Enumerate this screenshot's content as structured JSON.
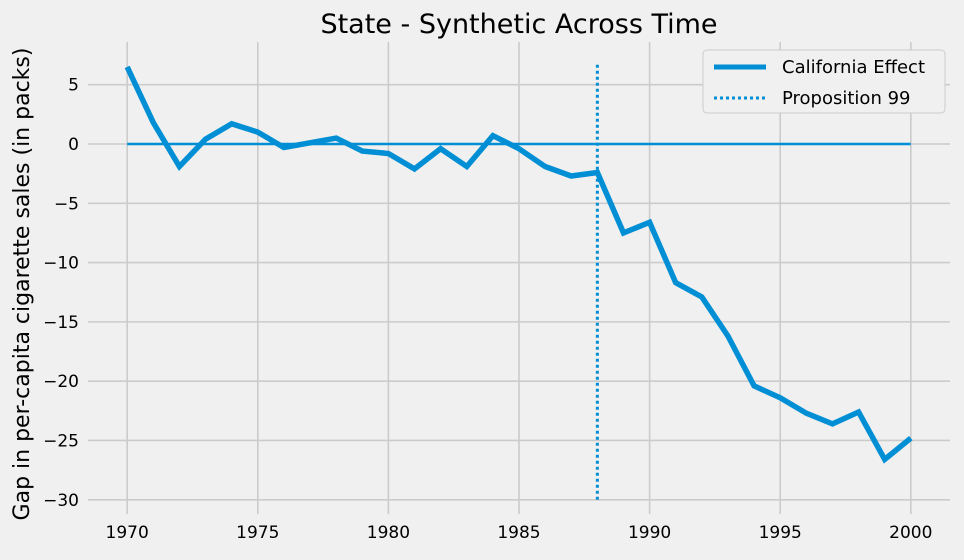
{
  "chart_data": {
    "type": "line",
    "title": "State - Synthetic Across Time",
    "xlabel": "",
    "ylabel": "Gap in per-capita cigarette sales (in packs)",
    "xlim": [
      1968.5,
      2001.5
    ],
    "ylim": [
      -31.2,
      8.6
    ],
    "xticks": [
      1970,
      1975,
      1980,
      1985,
      1990,
      1995,
      2000
    ],
    "yticks": [
      5,
      0,
      -5,
      -10,
      -15,
      -20,
      -25,
      -30
    ],
    "grid": true,
    "legend_position": "top-right",
    "colors": {
      "series": "#008fd5",
      "background": "#f0f0f0",
      "grid": "#cbcbcb"
    },
    "series": [
      {
        "name": "California Effect",
        "style": "solid",
        "x": [
          1970,
          1971,
          1972,
          1973,
          1974,
          1975,
          1976,
          1977,
          1978,
          1979,
          1980,
          1981,
          1982,
          1983,
          1984,
          1985,
          1986,
          1987,
          1988,
          1989,
          1990,
          1991,
          1992,
          1993,
          1994,
          1995,
          1996,
          1997,
          1998,
          1999,
          2000
        ],
        "values": [
          6.5,
          1.8,
          -1.9,
          0.4,
          1.7,
          1.0,
          -0.3,
          0.1,
          0.5,
          -0.6,
          -0.8,
          -2.1,
          -0.4,
          -1.9,
          0.7,
          -0.4,
          -1.9,
          -2.7,
          -2.4,
          -7.5,
          -6.6,
          -11.7,
          -12.9,
          -16.2,
          -20.4,
          -21.4,
          -22.7,
          -23.6,
          -22.6,
          -26.6,
          -24.8
        ]
      }
    ],
    "reference_lines": [
      {
        "name": "",
        "orientation": "horizontal",
        "y": 0,
        "x_from": 1970,
        "x_to": 2000,
        "style": "solid"
      },
      {
        "name": "Proposition 99",
        "orientation": "vertical",
        "x": 1988,
        "y_from": -30,
        "y_to": 6.8,
        "style": "dotted"
      }
    ]
  }
}
